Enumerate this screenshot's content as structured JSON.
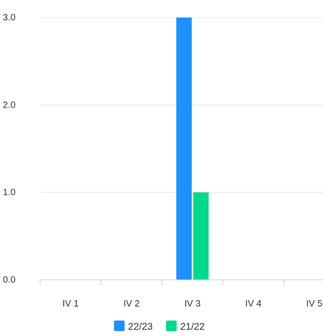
{
  "chart_data": {
    "type": "bar",
    "categories": [
      "IV 1",
      "IV 2",
      "IV 3",
      "IV 4",
      "IV 5"
    ],
    "series": [
      {
        "name": "22/23",
        "color": "#1e90ff",
        "values": [
          0,
          0,
          3,
          0,
          0
        ]
      },
      {
        "name": "21/22",
        "color": "#00d98b",
        "values": [
          0,
          0,
          1,
          0,
          0
        ]
      }
    ],
    "ylim": [
      0,
      3
    ],
    "yticks": [
      "0.0",
      "1.0",
      "2.0",
      "3.0"
    ],
    "grid": true,
    "legend_position": "bottom"
  }
}
